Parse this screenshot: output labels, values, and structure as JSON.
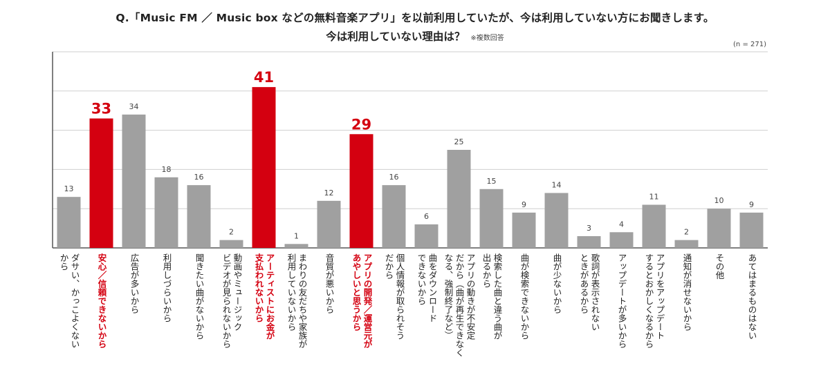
{
  "title_line1": "Q.「Music FM ／ Music box などの無料音楽アプリ」を以前利用していたが、今は利用していない方にお聞きします。",
  "title_line2": "今は利用していない理由は？",
  "title_note": "※複数回答",
  "sample_size": "(n = 271)",
  "colors": {
    "bar": "#a0a0a0",
    "highlight": "#d40010",
    "grid": "#cfcfcf",
    "axis": "#555555"
  },
  "chart_data": {
    "type": "bar",
    "ylim": [
      0,
      50
    ],
    "grid": true,
    "categories": [
      "ダサい、かっこよくない\nから",
      "安心／信頼できないから",
      "広告が多いから",
      "利用しづらいから",
      "聞きたい曲がないから",
      "動画やミュージック\nビデオが見られないから",
      "アーティストにお金が\n支払われないから",
      "まわりの友だちや家族が\n利用していないから",
      "音質が悪いから",
      "アプリの開発／運営元が\nあやしいと思うから",
      "個人情報が取られそう\nだから",
      "曲をダウンロード\nできないから",
      "アプリの動きが不安定\nだから（曲が再生できなく\nなる、強制終了など）",
      "検索した曲と違う曲が\n出るから",
      "曲が検索できないから",
      "曲が少ないから",
      "歌詞が表示されない\nときがあるから",
      "アップデートが多いから",
      "アプリをアップデート\nするとおかしくなるから",
      "通知が消せないから",
      "その他",
      "あてはまるものはない"
    ],
    "values": [
      13,
      33,
      34,
      18,
      16,
      2,
      41,
      1,
      12,
      29,
      16,
      6,
      25,
      15,
      9,
      14,
      3,
      4,
      11,
      2,
      10,
      9
    ],
    "highlighted": [
      1,
      6,
      9
    ]
  }
}
